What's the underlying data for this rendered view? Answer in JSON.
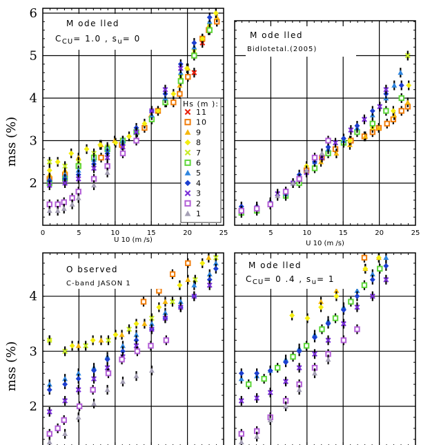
{
  "ylabel": "mss (%)",
  "xlabel": "U 10  (m /s)",
  "x_ticks": [
    "0",
    "5",
    "10",
    "15",
    "20",
    "25"
  ],
  "y_ticks": [
    "2",
    "3",
    "4",
    "5",
    "6"
  ],
  "legend": {
    "title": "Hs (m ):",
    "entries": [
      "11",
      "10",
      "9",
      "8",
      "7",
      "6",
      "5",
      "4",
      "3",
      "2",
      "1"
    ]
  },
  "panels": [
    {
      "title_line1": "M ode lled",
      "title_line2": "C",
      "title_sub": "CU",
      "title_rest": "= 1.0  , s",
      "title_sub2": "u",
      "title_end": "=  0"
    },
    {
      "title_line1": "M ode lled",
      "subtitle": "Bidlotetal.(2005)"
    },
    {
      "title_line1": "O bserved",
      "subtitle": "C-band JASON 1"
    },
    {
      "title_line1": "M ode lled",
      "title_line2": "C",
      "title_sub": "CU",
      "title_rest": "= 0 .4  , s",
      "title_sub2": "u",
      "title_end": "=  1"
    }
  ],
  "series_colors": {
    "11": "#e8210c",
    "10": "#f07d0c",
    "9": "#f6b80e",
    "8": "#f4ed10",
    "7": "#c9ec2a",
    "6": "#5ed63a",
    "5": "#2e86e0",
    "4": "#1c3fd0",
    "3": "#7a2fd8",
    "2": "#b25ed6",
    "1": "#a5a0b5"
  },
  "chart_data": [
    {
      "type": "scatter",
      "title": "M odelled  C CU = 1.0 , s u = 0",
      "xlabel": "U 10 (m /s)",
      "ylabel": "mss (%)",
      "xlim": [
        0,
        25
      ],
      "ylim": [
        1.15,
        6.2
      ],
      "series": [
        {
          "name": "11",
          "x": [
            21,
            22,
            23,
            24
          ],
          "y": [
            4.6,
            5.3,
            5.6,
            5.8
          ]
        },
        {
          "name": "10",
          "x": [
            1,
            3,
            5,
            8,
            11,
            14,
            16,
            18,
            19,
            20,
            21,
            22,
            23,
            24
          ],
          "y": [
            2.1,
            2.2,
            2.4,
            2.6,
            2.9,
            3.3,
            3.7,
            3.9,
            4.1,
            4.5,
            5.0,
            5.4,
            5.6,
            5.8
          ]
        },
        {
          "name": "9",
          "x": [
            1,
            3,
            5,
            8,
            10,
            13,
            15,
            17,
            19,
            20,
            21,
            22,
            23,
            24
          ],
          "y": [
            2.2,
            2.3,
            2.6,
            2.9,
            3.0,
            3.2,
            3.6,
            3.9,
            4.3,
            4.7,
            5.1,
            5.4,
            5.7,
            5.9
          ]
        },
        {
          "name": "8",
          "x": [
            1,
            2,
            4,
            6,
            8,
            10,
            12,
            14,
            16,
            18,
            20,
            22,
            24
          ],
          "y": [
            2.3,
            2.5,
            2.7,
            2.8,
            2.9,
            2.95,
            3.1,
            3.4,
            3.7,
            4.1,
            4.7,
            5.4,
            6.0
          ]
        },
        {
          "name": "7",
          "x": [
            1,
            3,
            5,
            7,
            9,
            11,
            13,
            15,
            17,
            19,
            21,
            23
          ],
          "y": [
            2.5,
            2.4,
            2.5,
            2.7,
            2.85,
            3.0,
            3.2,
            3.5,
            3.9,
            4.5,
            5.1,
            5.7
          ]
        },
        {
          "name": "6",
          "x": [
            1,
            3,
            5,
            7,
            9,
            11,
            13,
            15,
            17,
            19,
            21,
            23
          ],
          "y": [
            2.0,
            2.1,
            2.4,
            2.6,
            2.8,
            3.0,
            3.2,
            3.5,
            3.9,
            4.4,
            5.0,
            5.6
          ]
        },
        {
          "name": "5",
          "x": [
            1,
            3,
            5,
            7,
            9,
            11,
            13,
            15,
            17,
            19,
            21,
            23
          ],
          "y": [
            2.1,
            2.2,
            2.3,
            2.55,
            2.8,
            3.0,
            3.2,
            3.6,
            4.0,
            4.6,
            5.2,
            5.8
          ]
        },
        {
          "name": "4",
          "x": [
            1,
            3,
            5,
            7,
            9,
            11,
            13,
            15,
            17,
            19,
            21,
            23
          ],
          "y": [
            2.05,
            2.1,
            2.2,
            2.45,
            2.7,
            2.9,
            3.3,
            3.7,
            4.1,
            4.8,
            5.3,
            5.9
          ]
        },
        {
          "name": "3",
          "x": [
            1,
            3,
            5,
            7,
            9,
            11,
            13,
            15,
            17,
            19
          ],
          "y": [
            1.95,
            2.0,
            2.1,
            2.35,
            2.6,
            2.85,
            3.2,
            3.7,
            4.2,
            4.7
          ]
        },
        {
          "name": "2",
          "x": [
            1,
            2,
            3,
            4,
            5,
            7,
            9,
            11,
            13
          ],
          "y": [
            1.5,
            1.5,
            1.55,
            1.65,
            1.8,
            2.1,
            2.4,
            2.7,
            3.0
          ]
        },
        {
          "name": "1",
          "x": [
            1,
            2,
            3,
            4,
            5,
            7,
            9
          ],
          "y": [
            1.35,
            1.35,
            1.4,
            1.5,
            1.65,
            1.95,
            2.25
          ]
        }
      ]
    },
    {
      "type": "scatter",
      "title": "M odelled Bidlotetal.(2005)",
      "xlabel": "U 10 (m /s)",
      "ylabel": "mss (%)",
      "xlim": [
        0,
        25
      ],
      "ylim": [
        1.15,
        6.2
      ],
      "series": [
        {
          "name": "10",
          "x": [
            10,
            12,
            14,
            16,
            18,
            19,
            20,
            21,
            22,
            23,
            24
          ],
          "y": [
            2.3,
            2.6,
            2.8,
            3.0,
            3.1,
            3.2,
            3.3,
            3.4,
            3.5,
            3.7,
            3.8
          ]
        },
        {
          "name": "9",
          "x": [
            12,
            14,
            16,
            18,
            20,
            22,
            24
          ],
          "y": [
            2.5,
            2.7,
            2.9,
            3.1,
            3.3,
            3.6,
            3.9
          ]
        },
        {
          "name": "8",
          "x": [
            10,
            13,
            16,
            19,
            22,
            24
          ],
          "y": [
            2.4,
            2.75,
            3.0,
            3.3,
            3.7,
            4.3
          ]
        },
        {
          "name": "7",
          "x": [
            24
          ],
          "y": [
            5.0
          ]
        },
        {
          "name": "6",
          "x": [
            1,
            3,
            5,
            7,
            9,
            11,
            13,
            15,
            17,
            19,
            21,
            23
          ],
          "y": [
            1.3,
            1.35,
            1.5,
            1.7,
            2.0,
            2.35,
            2.7,
            2.95,
            3.2,
            3.4,
            3.7,
            4.0
          ]
        },
        {
          "name": "5",
          "x": [
            1,
            3,
            5,
            7,
            9,
            11,
            13,
            15,
            17,
            19,
            21,
            22,
            23
          ],
          "y": [
            1.4,
            1.4,
            1.5,
            1.75,
            2.1,
            2.5,
            2.8,
            3.0,
            3.3,
            3.6,
            4.0,
            4.3,
            4.6
          ]
        },
        {
          "name": "4",
          "x": [
            1,
            3,
            5,
            7,
            9,
            11,
            13,
            15,
            17,
            19,
            21,
            23
          ],
          "y": [
            1.45,
            1.45,
            1.55,
            1.8,
            2.2,
            2.5,
            2.85,
            3.05,
            3.35,
            3.7,
            4.1,
            4.3
          ]
        },
        {
          "name": "3",
          "x": [
            6,
            8,
            10,
            12,
            14,
            16,
            18,
            20,
            21
          ],
          "y": [
            1.75,
            2.0,
            2.25,
            2.6,
            2.95,
            3.25,
            3.5,
            3.8,
            4.2
          ]
        },
        {
          "name": "2",
          "x": [
            1,
            3,
            5,
            7,
            9,
            11,
            13
          ],
          "y": [
            1.35,
            1.4,
            1.5,
            1.8,
            2.1,
            2.6,
            3.0
          ]
        },
        {
          "name": "1",
          "x": [
            6,
            8,
            10,
            12
          ],
          "y": [
            1.7,
            2.0,
            2.3,
            2.7
          ]
        }
      ]
    },
    {
      "type": "scatter",
      "title": "O bserved C-band JASON 1",
      "xlabel": "",
      "ylabel": "mss (%)",
      "xlim": [
        0,
        25
      ],
      "ylim": [
        1.15,
        6.2
      ],
      "series": [
        {
          "name": "10",
          "x": [
            14,
            16,
            18,
            20,
            21,
            22,
            23,
            24
          ],
          "y": [
            3.9,
            4.1,
            4.4,
            4.6,
            4.8,
            5.0,
            5.1,
            5.3
          ]
        },
        {
          "name": "9",
          "x": [
            5,
            8,
            11,
            14,
            17,
            20,
            23,
            24
          ],
          "y": [
            3.1,
            3.2,
            3.3,
            3.5,
            3.9,
            4.3,
            4.7,
            4.9
          ]
        },
        {
          "name": "8",
          "x": [
            1,
            4,
            7,
            10,
            13,
            16,
            19,
            22,
            24
          ],
          "y": [
            3.2,
            3.1,
            3.2,
            3.3,
            3.5,
            3.8,
            4.2,
            4.6,
            5.0
          ]
        },
        {
          "name": "7",
          "x": [
            1,
            3,
            6,
            9,
            12,
            15,
            18,
            21,
            24
          ],
          "y": [
            3.2,
            3.0,
            3.1,
            3.2,
            3.4,
            3.6,
            3.9,
            4.3,
            4.7
          ]
        },
        {
          "name": "5",
          "x": [
            1,
            3,
            5,
            7,
            9,
            11,
            13,
            15,
            17,
            19,
            21,
            23,
            24
          ],
          "y": [
            2.4,
            2.5,
            2.6,
            2.7,
            2.9,
            3.1,
            3.3,
            3.5,
            3.7,
            3.9,
            4.2,
            4.4,
            4.6
          ]
        },
        {
          "name": "4",
          "x": [
            1,
            3,
            5,
            7,
            9,
            11,
            13,
            15,
            17,
            19,
            21,
            23,
            24
          ],
          "y": [
            2.3,
            2.4,
            2.5,
            2.65,
            2.85,
            3.0,
            3.2,
            3.4,
            3.6,
            3.8,
            4.0,
            4.3,
            4.5
          ]
        },
        {
          "name": "3",
          "x": [
            1,
            3,
            5,
            7,
            9,
            11,
            13,
            15,
            17,
            19,
            21,
            23
          ],
          "y": [
            1.9,
            2.1,
            2.3,
            2.5,
            2.7,
            2.9,
            3.1,
            3.4,
            3.6,
            3.8,
            4.0,
            4.2
          ]
        },
        {
          "name": "2",
          "x": [
            1,
            2,
            3,
            5,
            7,
            9,
            11,
            13,
            15,
            17
          ],
          "y": [
            1.5,
            1.6,
            1.75,
            2.0,
            2.3,
            2.6,
            2.85,
            3.0,
            3.1,
            3.2
          ]
        },
        {
          "name": "1",
          "x": [
            1,
            3,
            5,
            7,
            9,
            11,
            13,
            15
          ],
          "y": [
            1.35,
            1.5,
            1.8,
            2.05,
            2.3,
            2.45,
            2.55,
            2.65
          ]
        }
      ]
    },
    {
      "type": "scatter",
      "title": "M odelled  C CU = 0.4 , s u = 1",
      "xlabel": "",
      "ylabel": "mss (%)",
      "xlim": [
        0,
        25
      ],
      "ylim": [
        1.15,
        6.2
      ],
      "series": [
        {
          "name": "10",
          "x": [
            14,
            16,
            18,
            20,
            22,
            24
          ],
          "y": [
            4.3,
            4.5,
            4.7,
            4.9,
            5.1,
            5.3
          ]
        },
        {
          "name": "9",
          "x": [
            12,
            14,
            16,
            18,
            20,
            22,
            24
          ],
          "y": [
            3.9,
            4.1,
            4.3,
            4.5,
            4.7,
            4.9,
            5.2
          ]
        },
        {
          "name": "8",
          "x": [
            8,
            10,
            12,
            14,
            16,
            18,
            20,
            22,
            24
          ],
          "y": [
            3.65,
            3.6,
            3.8,
            4.0,
            4.3,
            4.5,
            4.7,
            4.9,
            5.1
          ]
        },
        {
          "name": "6",
          "x": [
            2,
            4,
            6,
            8,
            10,
            12,
            14,
            16,
            18,
            20,
            22,
            24
          ],
          "y": [
            2.4,
            2.5,
            2.7,
            2.9,
            3.1,
            3.4,
            3.6,
            3.9,
            4.2,
            4.5,
            4.8,
            5.1
          ]
        },
        {
          "name": "5",
          "x": [
            1,
            3,
            5,
            7,
            9,
            11,
            13,
            15,
            17,
            19,
            21,
            23
          ],
          "y": [
            2.5,
            2.55,
            2.65,
            2.85,
            3.05,
            3.3,
            3.55,
            3.8,
            4.1,
            4.4,
            4.7,
            5.0
          ]
        },
        {
          "name": "4",
          "x": [
            1,
            3,
            5,
            7,
            9,
            11,
            13,
            15,
            17,
            19,
            21,
            23
          ],
          "y": [
            2.6,
            2.6,
            2.65,
            2.8,
            3.0,
            3.25,
            3.5,
            3.75,
            4.0,
            4.3,
            4.55,
            4.85
          ]
        },
        {
          "name": "3",
          "x": [
            1,
            3,
            5,
            7,
            9,
            11,
            13,
            15,
            17,
            19,
            21
          ],
          "y": [
            2.1,
            2.15,
            2.25,
            2.45,
            2.7,
            2.95,
            3.2,
            3.5,
            3.8,
            4.0,
            4.3
          ]
        },
        {
          "name": "2",
          "x": [
            1,
            3,
            5,
            7,
            9,
            11,
            13,
            15,
            17
          ],
          "y": [
            1.5,
            1.55,
            1.8,
            2.1,
            2.4,
            2.7,
            2.95,
            3.2,
            3.4
          ]
        },
        {
          "name": "1",
          "x": [
            1,
            3,
            5,
            7,
            9,
            11,
            13
          ],
          "y": [
            1.35,
            1.45,
            1.75,
            2.0,
            2.3,
            2.6,
            2.85
          ]
        }
      ]
    }
  ]
}
